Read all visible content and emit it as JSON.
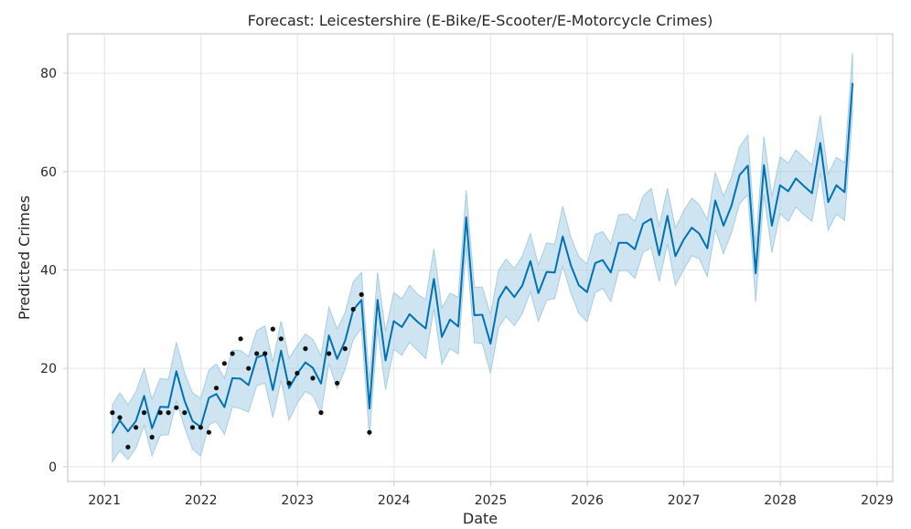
{
  "chart_data": {
    "type": "line",
    "title": "Forecast: Leicestershire (E-Bike/E-Scooter/E-Motorcycle Crimes)",
    "xlabel": "Date",
    "ylabel": "Predicted Crimes",
    "xlim": [
      "2020-08-15",
      "2029-03-01"
    ],
    "ylim": [
      -3,
      88
    ],
    "grid": true,
    "x_ticks": [
      "2021",
      "2022",
      "2023",
      "2024",
      "2025",
      "2026",
      "2027",
      "2028",
      "2029"
    ],
    "y_ticks": [
      0,
      20,
      40,
      60,
      80
    ],
    "colors": {
      "forecast": "#0072b2",
      "band": "#a6cde3",
      "observed": "#111111"
    },
    "series": [
      {
        "kind": "forecast",
        "x": [
          "2021-01-31",
          "2021-02-28",
          "2021-03-31",
          "2021-04-30",
          "2021-05-31",
          "2021-06-30",
          "2021-07-31",
          "2021-08-31",
          "2021-09-30",
          "2021-10-31",
          "2021-11-30",
          "2021-12-31",
          "2022-01-31",
          "2022-02-28",
          "2022-03-31",
          "2022-04-30",
          "2022-05-31",
          "2022-06-30",
          "2022-07-31",
          "2022-08-31",
          "2022-09-30",
          "2022-10-31",
          "2022-11-30",
          "2022-12-31",
          "2023-01-31",
          "2023-02-28",
          "2023-03-31",
          "2023-04-30",
          "2023-05-31",
          "2023-06-30",
          "2023-07-31",
          "2023-08-31",
          "2023-09-30",
          "2023-10-31",
          "2023-11-30",
          "2023-12-31",
          "2024-01-31",
          "2024-02-29",
          "2024-03-31",
          "2024-04-30",
          "2024-05-31",
          "2024-06-30",
          "2024-07-31",
          "2024-08-31",
          "2024-09-30",
          "2024-10-31",
          "2024-11-30",
          "2024-12-31",
          "2025-01-31",
          "2025-02-28",
          "2025-03-31",
          "2025-04-30",
          "2025-05-31",
          "2025-06-30",
          "2025-07-31",
          "2025-08-31",
          "2025-09-30",
          "2025-10-31",
          "2025-11-30",
          "2025-12-31",
          "2026-01-31",
          "2026-02-28",
          "2026-03-31",
          "2026-04-30",
          "2026-05-31",
          "2026-06-30",
          "2026-07-31",
          "2026-08-31",
          "2026-09-30",
          "2026-10-31",
          "2026-11-30",
          "2026-12-31",
          "2027-01-31",
          "2027-02-28",
          "2027-03-31",
          "2027-04-30",
          "2027-05-31",
          "2027-06-30",
          "2027-07-31",
          "2027-08-31",
          "2027-09-30",
          "2027-10-31",
          "2027-11-30",
          "2027-12-31",
          "2028-01-31",
          "2028-02-29",
          "2028-03-31",
          "2028-04-30",
          "2028-05-31",
          "2028-06-30",
          "2028-07-31",
          "2028-08-31",
          "2028-09-30"
        ],
        "yhat": [
          6.8,
          9.4,
          7.2,
          9.3,
          14.4,
          7.8,
          12.2,
          12.1,
          19.4,
          13.4,
          9.3,
          8.1,
          14.0,
          14.8,
          12.1,
          18.0,
          17.9,
          16.6,
          22.2,
          22.8,
          15.6,
          23.6,
          16.0,
          18.9,
          21.2,
          20.1,
          16.9,
          26.7,
          21.9,
          25.6,
          31.9,
          33.9,
          11.8,
          33.9,
          21.6,
          29.6,
          28.4,
          31.0,
          29.4,
          28.1,
          38.2,
          26.4,
          29.9,
          28.5,
          50.7,
          30.8,
          30.9,
          25.0,
          34.1,
          36.6,
          34.5,
          36.8,
          41.8,
          35.3,
          39.6,
          39.5,
          46.8,
          40.9,
          36.9,
          35.5,
          41.4,
          42.0,
          39.5,
          45.5,
          45.5,
          44.2,
          49.4,
          50.4,
          43.0,
          51.0,
          42.8,
          46.1,
          48.6,
          47.4,
          44.4,
          54.1,
          49.0,
          53.0,
          59.3,
          61.2,
          39.3,
          61.3,
          49.0,
          57.2,
          56.0,
          58.6,
          57.0,
          55.6,
          65.8,
          53.8,
          57.2,
          55.8,
          78.0
        ],
        "yhat_lower": [
          1.0,
          3.3,
          1.5,
          3.8,
          8.5,
          2.2,
          6.4,
          6.5,
          13.4,
          8.0,
          3.6,
          2.2,
          8.5,
          9.2,
          6.6,
          12.2,
          11.8,
          11.1,
          16.5,
          17.0,
          10.0,
          17.6,
          9.5,
          12.9,
          15.3,
          14.5,
          10.9,
          21.0,
          15.9,
          19.8,
          25.9,
          28.1,
          6.1,
          28.0,
          15.7,
          23.9,
          22.7,
          25.3,
          23.6,
          22.0,
          32.2,
          20.9,
          24.0,
          22.9,
          44.9,
          25.2,
          25.1,
          19.0,
          28.3,
          30.6,
          28.7,
          31.1,
          35.6,
          29.6,
          33.8,
          34.2,
          40.8,
          35.3,
          31.2,
          29.5,
          35.4,
          36.3,
          33.6,
          39.8,
          39.9,
          38.3,
          43.6,
          44.5,
          37.6,
          45.3,
          36.9,
          40.0,
          42.9,
          42.3,
          38.7,
          48.3,
          43.3,
          47.5,
          53.5,
          55.3,
          33.5,
          55.4,
          43.5,
          51.5,
          49.9,
          52.8,
          51.2,
          49.9,
          59.8,
          48.1,
          51.4,
          50.1,
          72.0
        ],
        "yhat_upper": [
          12.6,
          15.0,
          12.6,
          15.2,
          20.0,
          13.7,
          18.0,
          17.7,
          25.3,
          19.1,
          15.0,
          13.9,
          19.6,
          20.9,
          18.0,
          23.7,
          23.6,
          22.4,
          27.7,
          28.6,
          21.2,
          29.6,
          22.0,
          24.6,
          27.0,
          25.9,
          22.5,
          32.4,
          28.0,
          31.3,
          37.6,
          39.5,
          17.5,
          39.5,
          27.5,
          35.4,
          34.1,
          36.9,
          35.0,
          34.0,
          44.3,
          32.2,
          35.3,
          34.4,
          56.2,
          36.5,
          36.5,
          30.9,
          39.9,
          42.2,
          40.3,
          42.8,
          47.4,
          41.0,
          45.5,
          45.2,
          52.9,
          46.6,
          42.7,
          41.2,
          47.2,
          47.8,
          45.3,
          51.2,
          51.4,
          49.9,
          55.0,
          56.6,
          48.8,
          56.6,
          48.5,
          51.9,
          54.6,
          53.3,
          50.2,
          59.8,
          54.9,
          58.8,
          65.0,
          67.4,
          45.1,
          67.1,
          54.9,
          63.0,
          61.7,
          64.4,
          62.8,
          61.3,
          71.4,
          59.5,
          62.9,
          61.8,
          84.1
        ]
      },
      {
        "kind": "observed",
        "x": [
          "2021-01-31",
          "2021-02-28",
          "2021-03-31",
          "2021-04-30",
          "2021-05-31",
          "2021-06-30",
          "2021-07-31",
          "2021-08-31",
          "2021-09-30",
          "2021-10-31",
          "2021-11-30",
          "2021-12-31",
          "2022-01-31",
          "2022-02-28",
          "2022-03-31",
          "2022-04-30",
          "2022-05-31",
          "2022-06-30",
          "2022-07-31",
          "2022-08-31",
          "2022-09-30",
          "2022-10-31",
          "2022-11-30",
          "2022-12-31",
          "2023-01-31",
          "2023-02-28",
          "2023-03-31",
          "2023-04-30",
          "2023-05-31",
          "2023-06-30",
          "2023-07-31",
          "2023-08-31",
          "2023-09-30"
        ],
        "y": [
          11,
          10,
          4,
          8,
          11,
          6,
          11,
          11,
          12,
          11,
          8,
          8,
          7,
          16,
          21,
          23,
          26,
          20,
          23,
          23,
          28,
          26,
          17,
          19,
          24,
          18,
          11,
          23,
          17,
          24,
          32,
          35,
          7
        ]
      }
    ]
  }
}
